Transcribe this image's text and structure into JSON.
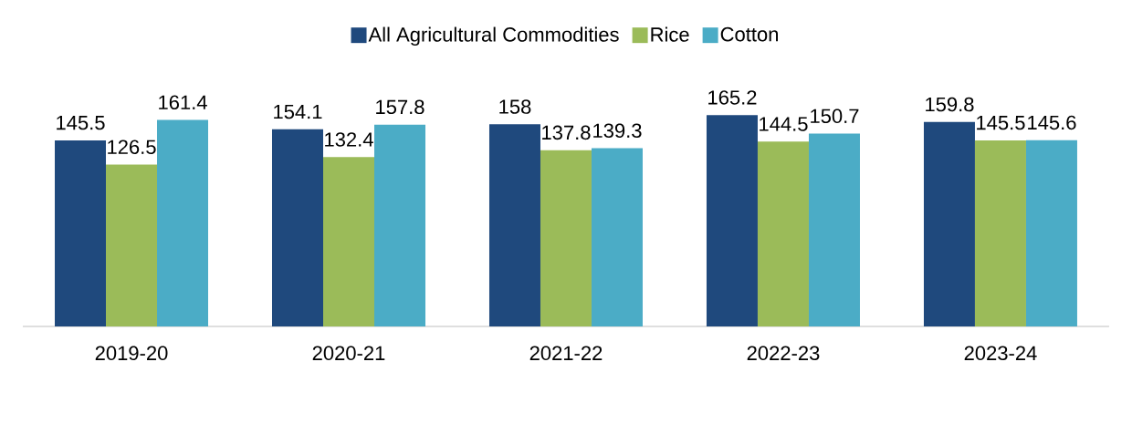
{
  "chart_data": {
    "type": "bar",
    "categories": [
      "2019-20",
      "2020-21",
      "2021-22",
      "2022-23",
      "2023-24"
    ],
    "series": [
      {
        "name": "All Agricultural Commodities",
        "color": "#1f497d",
        "values": [
          145.5,
          154.1,
          158,
          165.2,
          159.8
        ]
      },
      {
        "name": "Rice",
        "color": "#9bbb59",
        "values": [
          126.5,
          132.4,
          137.8,
          144.5,
          145.5
        ]
      },
      {
        "name": "Cotton",
        "color": "#4bacc6",
        "values": [
          161.4,
          157.8,
          139.3,
          150.7,
          145.6
        ]
      }
    ],
    "data_labels": true,
    "legend": "top",
    "tick_labels": "x"
  }
}
